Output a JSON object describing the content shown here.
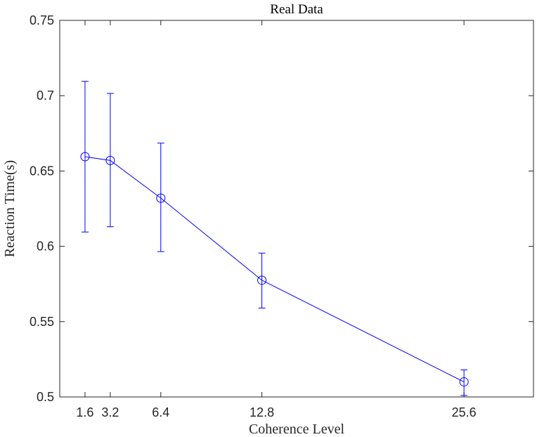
{
  "chart_data": {
    "type": "line",
    "title": "Real Data",
    "xlabel": "Coherence Level",
    "ylabel": "Reaction Time(s)",
    "xlim": [
      0,
      30
    ],
    "ylim": [
      0.5,
      0.75
    ],
    "x_ticks": [
      1.6,
      3.2,
      6.4,
      12.8,
      25.6
    ],
    "x_tick_labels": [
      "1.6",
      "3.2",
      "6.4",
      "12.8",
      "25.6"
    ],
    "y_ticks": [
      0.5,
      0.55,
      0.6,
      0.65,
      0.7,
      0.75
    ],
    "y_tick_labels": [
      "0.5",
      "0.55",
      "0.6",
      "0.65",
      "0.7",
      "0.75"
    ],
    "grid": false,
    "legend": "none",
    "series": [
      {
        "color": "#0000ff",
        "marker": "circle",
        "x": [
          1.6,
          3.2,
          6.4,
          12.8,
          25.6
        ],
        "y": [
          0.6595,
          0.657,
          0.632,
          0.5775,
          0.51
        ],
        "y_lower": [
          0.6095,
          0.613,
          0.5965,
          0.559,
          0.501
        ],
        "y_upper": [
          0.7095,
          0.7015,
          0.6685,
          0.5955,
          0.518
        ]
      }
    ]
  }
}
